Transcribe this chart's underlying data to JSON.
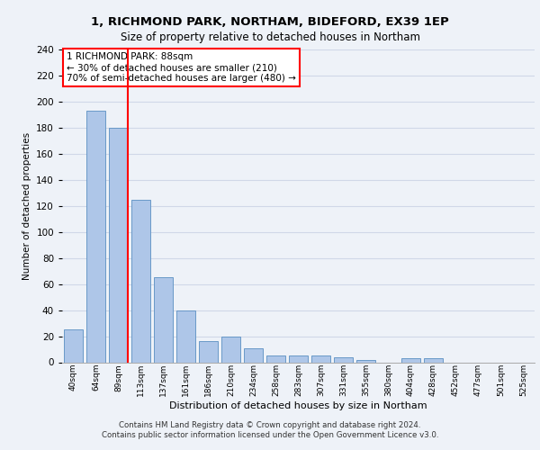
{
  "title_line1": "1, RICHMOND PARK, NORTHAM, BIDEFORD, EX39 1EP",
  "title_line2": "Size of property relative to detached houses in Northam",
  "xlabel": "Distribution of detached houses by size in Northam",
  "ylabel": "Number of detached properties",
  "footer_line1": "Contains HM Land Registry data © Crown copyright and database right 2024.",
  "footer_line2": "Contains public sector information licensed under the Open Government Licence v3.0.",
  "categories": [
    "40sqm",
    "64sqm",
    "89sqm",
    "113sqm",
    "137sqm",
    "161sqm",
    "186sqm",
    "210sqm",
    "234sqm",
    "258sqm",
    "283sqm",
    "307sqm",
    "331sqm",
    "355sqm",
    "380sqm",
    "404sqm",
    "428sqm",
    "452sqm",
    "477sqm",
    "501sqm",
    "525sqm"
  ],
  "values": [
    25,
    193,
    180,
    125,
    65,
    40,
    16,
    20,
    11,
    5,
    5,
    5,
    4,
    2,
    0,
    3,
    3,
    0,
    0,
    0,
    0
  ],
  "bar_color": "#aec6e8",
  "bar_edge_color": "#5a8fc2",
  "red_line_x": 2,
  "annotation_text": "1 RICHMOND PARK: 88sqm\n← 30% of detached houses are smaller (210)\n70% of semi-detached houses are larger (480) →",
  "annotation_box_color": "white",
  "annotation_border_color": "red",
  "ylim": [
    0,
    240
  ],
  "yticks": [
    0,
    20,
    40,
    60,
    80,
    100,
    120,
    140,
    160,
    180,
    200,
    220,
    240
  ],
  "grid_color": "#d0d8e8",
  "background_color": "#eef2f8",
  "plot_bg_color": "#eef2f8",
  "bar_width": 0.85
}
